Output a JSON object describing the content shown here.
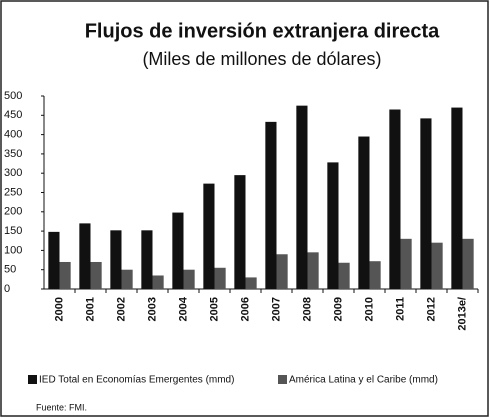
{
  "chart_data": {
    "type": "bar",
    "title": "Flujos de inversión extranjera directa",
    "subtitle": "(Miles de millones de dólares)",
    "categories": [
      "2000",
      "2001",
      "2002",
      "2003",
      "2004",
      "2005",
      "2006",
      "2007",
      "2008",
      "2009",
      "2010",
      "2011",
      "2012",
      "2013e/"
    ],
    "series": [
      {
        "name": "IED Total en  Economías Emergentes  (mmd)",
        "color": "#111111",
        "values": [
          148,
          170,
          152,
          152,
          198,
          273,
          295,
          433,
          475,
          328,
          395,
          465,
          442,
          470
        ]
      },
      {
        "name": "América Latina y el Caribe (mmd)",
        "color": "#555555",
        "values": [
          70,
          70,
          50,
          35,
          50,
          55,
          30,
          90,
          95,
          68,
          72,
          130,
          120,
          130
        ]
      }
    ],
    "ylim": [
      0,
      500
    ],
    "yticks": [
      0,
      50,
      100,
      150,
      200,
      250,
      300,
      350,
      400,
      450,
      500
    ],
    "grid": false,
    "source": "Fuente: FMI."
  }
}
